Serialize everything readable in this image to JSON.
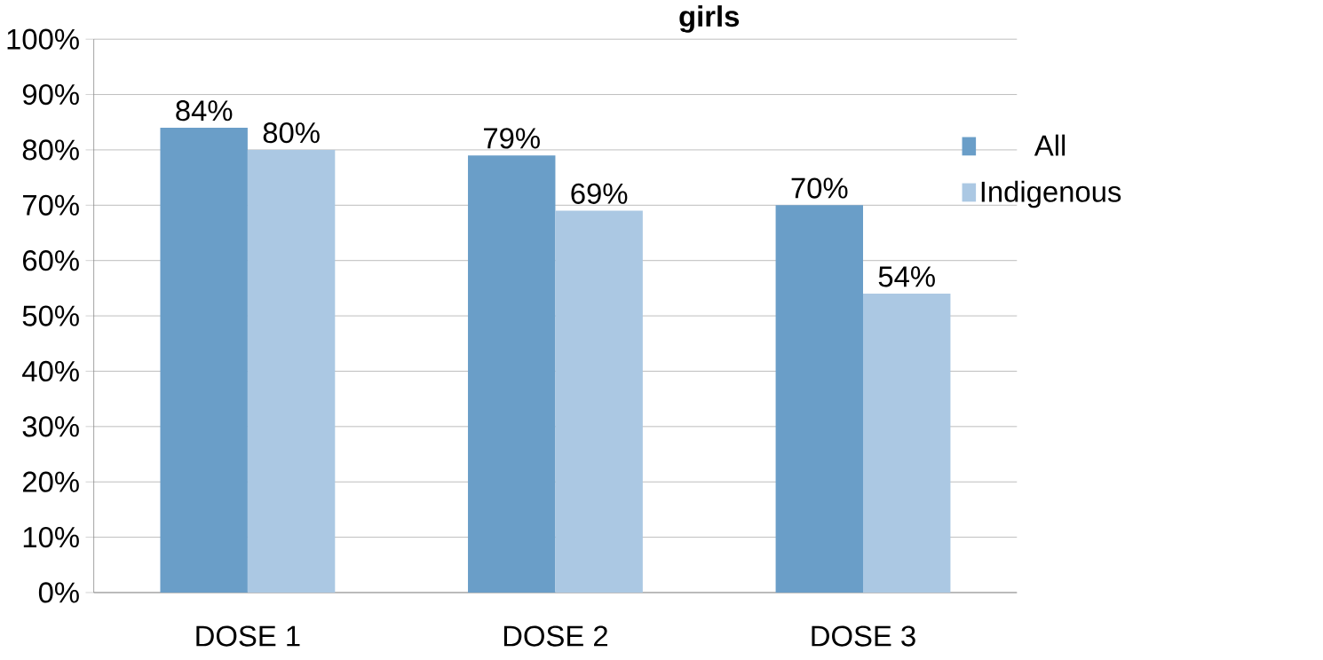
{
  "chart_data": {
    "type": "bar",
    "title": "girls",
    "categories": [
      "DOSE 1",
      "DOSE 2",
      "DOSE 3"
    ],
    "series": [
      {
        "name": "All",
        "color": "#6a9ec8",
        "values": [
          84,
          79,
          70
        ],
        "value_labels": [
          "84%",
          "79%",
          "70%"
        ]
      },
      {
        "name": "Indigenous",
        "color": "#abc8e3",
        "values": [
          80,
          69,
          54
        ],
        "value_labels": [
          "80%",
          "69%",
          "54%"
        ]
      }
    ],
    "ylim": [
      0,
      100
    ],
    "yticks": [
      {
        "value": 0,
        "label": "0%"
      },
      {
        "value": 10,
        "label": "10%"
      },
      {
        "value": 20,
        "label": "20%"
      },
      {
        "value": 30,
        "label": "30%"
      },
      {
        "value": 40,
        "label": "40%"
      },
      {
        "value": 50,
        "label": "50%"
      },
      {
        "value": 60,
        "label": "60%"
      },
      {
        "value": 70,
        "label": "70%"
      },
      {
        "value": 80,
        "label": "80%"
      },
      {
        "value": 90,
        "label": "90%"
      },
      {
        "value": 100,
        "label": "100%"
      }
    ],
    "grid": "y",
    "legend": "right"
  }
}
